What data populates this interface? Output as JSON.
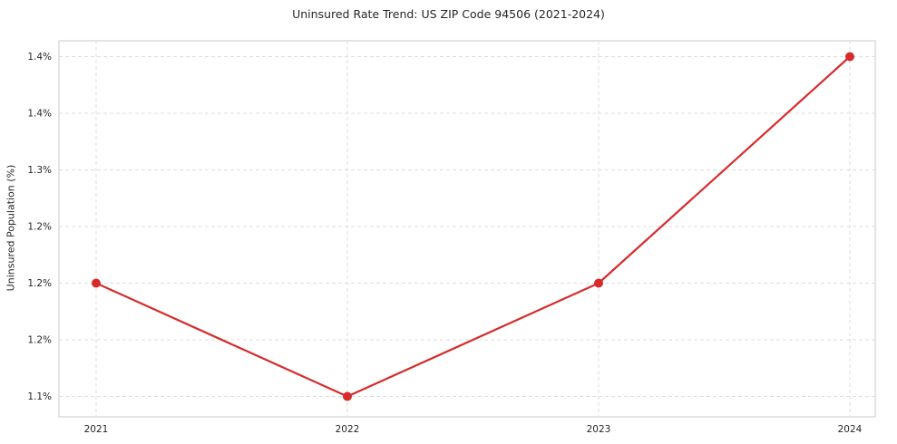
{
  "page": {
    "title": "Uninsured Rate Trend: US ZIP Code 94506 (2021-2024)"
  },
  "chart_data": {
    "type": "line",
    "title": "Uninsured Rate Trend: US ZIP Code 94506 (2021-2024)",
    "xlabel": "",
    "ylabel": "Uninsured Population (%)",
    "categories": [
      "2021",
      "2022",
      "2023",
      "2024"
    ],
    "series": [
      {
        "name": "Uninsured Population (%)",
        "color": "#d62b2b",
        "values": [
          1.2,
          1.1,
          1.2,
          1.4
        ]
      }
    ],
    "ylim": [
      1.082,
      1.414
    ],
    "y_ticks": [
      {
        "value": 1.1,
        "label": "1.1%"
      },
      {
        "value": 1.15,
        "label": "1.2%"
      },
      {
        "value": 1.2,
        "label": "1.2%"
      },
      {
        "value": 1.25,
        "label": "1.2%"
      },
      {
        "value": 1.3,
        "label": "1.3%"
      },
      {
        "value": 1.35,
        "label": "1.4%"
      },
      {
        "value": 1.4,
        "label": "1.4%"
      }
    ],
    "grid": true,
    "grid_style": "dashed",
    "grid_color": "#dcdcdc",
    "border_color": "#c9c9c9",
    "legend": "none"
  }
}
